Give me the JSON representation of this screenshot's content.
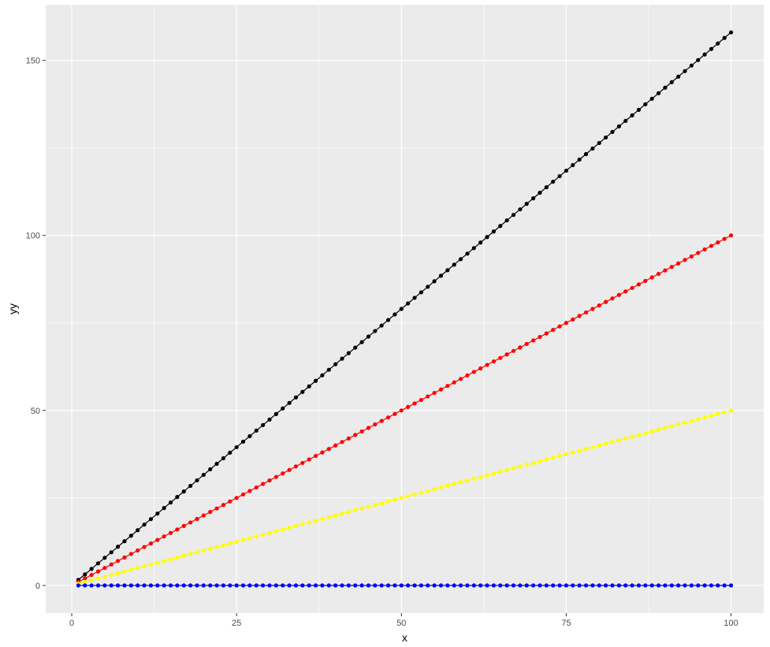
{
  "chart_data": {
    "type": "line",
    "title": "",
    "xlabel": "x",
    "ylabel": "yy",
    "xlim": [
      -3.95,
      104.95
    ],
    "ylim": [
      -7.9,
      165.9
    ],
    "grid": true,
    "panel_background": "#ebebeb",
    "grid_color": "#ffffff",
    "x_ticks": [
      0,
      25,
      50,
      75,
      100
    ],
    "x_tick_labels": [
      "0",
      "25",
      "50",
      "75",
      "100"
    ],
    "y_ticks": [
      0,
      50,
      100,
      150
    ],
    "y_tick_labels": [
      "0",
      "50",
      "100",
      "150"
    ],
    "x_range": [
      1,
      100
    ],
    "series": [
      {
        "color": "#000000",
        "slope": 1.58,
        "intercept": 0
      },
      {
        "color": "#ff0000",
        "slope": 1.0,
        "intercept": 0
      },
      {
        "color": "#ffff00",
        "slope": 0.5,
        "intercept": 0
      },
      {
        "color": "#0000ff",
        "slope": 0.0,
        "intercept": 0
      }
    ]
  }
}
